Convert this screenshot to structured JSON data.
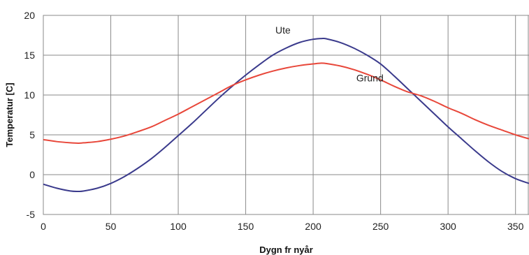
{
  "chart_data": {
    "type": "line",
    "xlabel": "Dygn fr nyår",
    "ylabel": "Temperatur [C]",
    "xlim": [
      0,
      360
    ],
    "ylim": [
      -5,
      20
    ],
    "x_ticks": [
      0,
      50,
      100,
      150,
      200,
      250,
      300,
      350
    ],
    "y_ticks": [
      -5,
      0,
      5,
      10,
      15,
      20
    ],
    "x_tick_labels": [
      "0",
      "50",
      "100",
      "150",
      "200",
      "250",
      "300",
      "350"
    ],
    "y_tick_labels": [
      "-5",
      "0",
      "5",
      "10",
      "15",
      "20"
    ],
    "grid": true,
    "series": [
      {
        "name": "Ute",
        "color": "#3a3a8c",
        "x": [
          0,
          10,
          20,
          26,
          30,
          40,
          50,
          60,
          70,
          80,
          90,
          100,
          110,
          120,
          130,
          140,
          150,
          160,
          170,
          180,
          190,
          200,
          207,
          210,
          220,
          230,
          240,
          250,
          260,
          270,
          280,
          290,
          300,
          310,
          320,
          330,
          340,
          350,
          360
        ],
        "values": [
          -1.2,
          -1.7,
          -2.05,
          -2.1,
          -2.05,
          -1.7,
          -1.1,
          -0.25,
          0.8,
          2.0,
          3.4,
          4.9,
          6.4,
          8.0,
          9.6,
          11.1,
          12.5,
          13.8,
          15.0,
          15.9,
          16.6,
          17.0,
          17.1,
          17.05,
          16.6,
          15.9,
          15.0,
          13.9,
          12.4,
          10.8,
          9.2,
          7.6,
          6.0,
          4.5,
          3.0,
          1.6,
          0.4,
          -0.5,
          -1.1
        ]
      },
      {
        "name": "Grund",
        "color": "#e8473a",
        "x": [
          0,
          10,
          20,
          26,
          30,
          40,
          50,
          60,
          70,
          80,
          90,
          100,
          110,
          120,
          130,
          140,
          150,
          160,
          170,
          180,
          190,
          200,
          206,
          210,
          220,
          230,
          240,
          250,
          260,
          270,
          280,
          290,
          300,
          310,
          320,
          330,
          340,
          350,
          360
        ],
        "values": [
          4.4,
          4.15,
          4.0,
          3.95,
          4.0,
          4.15,
          4.45,
          4.85,
          5.4,
          6.0,
          6.8,
          7.6,
          8.5,
          9.4,
          10.3,
          11.2,
          11.9,
          12.5,
          13.0,
          13.4,
          13.7,
          13.9,
          14.0,
          13.95,
          13.65,
          13.2,
          12.6,
          11.9,
          11.1,
          10.4,
          9.9,
          9.2,
          8.4,
          7.7,
          6.9,
          6.2,
          5.6,
          5.0,
          4.5
        ]
      }
    ],
    "annotations": [
      {
        "text": "Ute",
        "x": 172,
        "y": 17.7
      },
      {
        "text": "Grund",
        "x": 232,
        "y": 11.7
      }
    ]
  }
}
